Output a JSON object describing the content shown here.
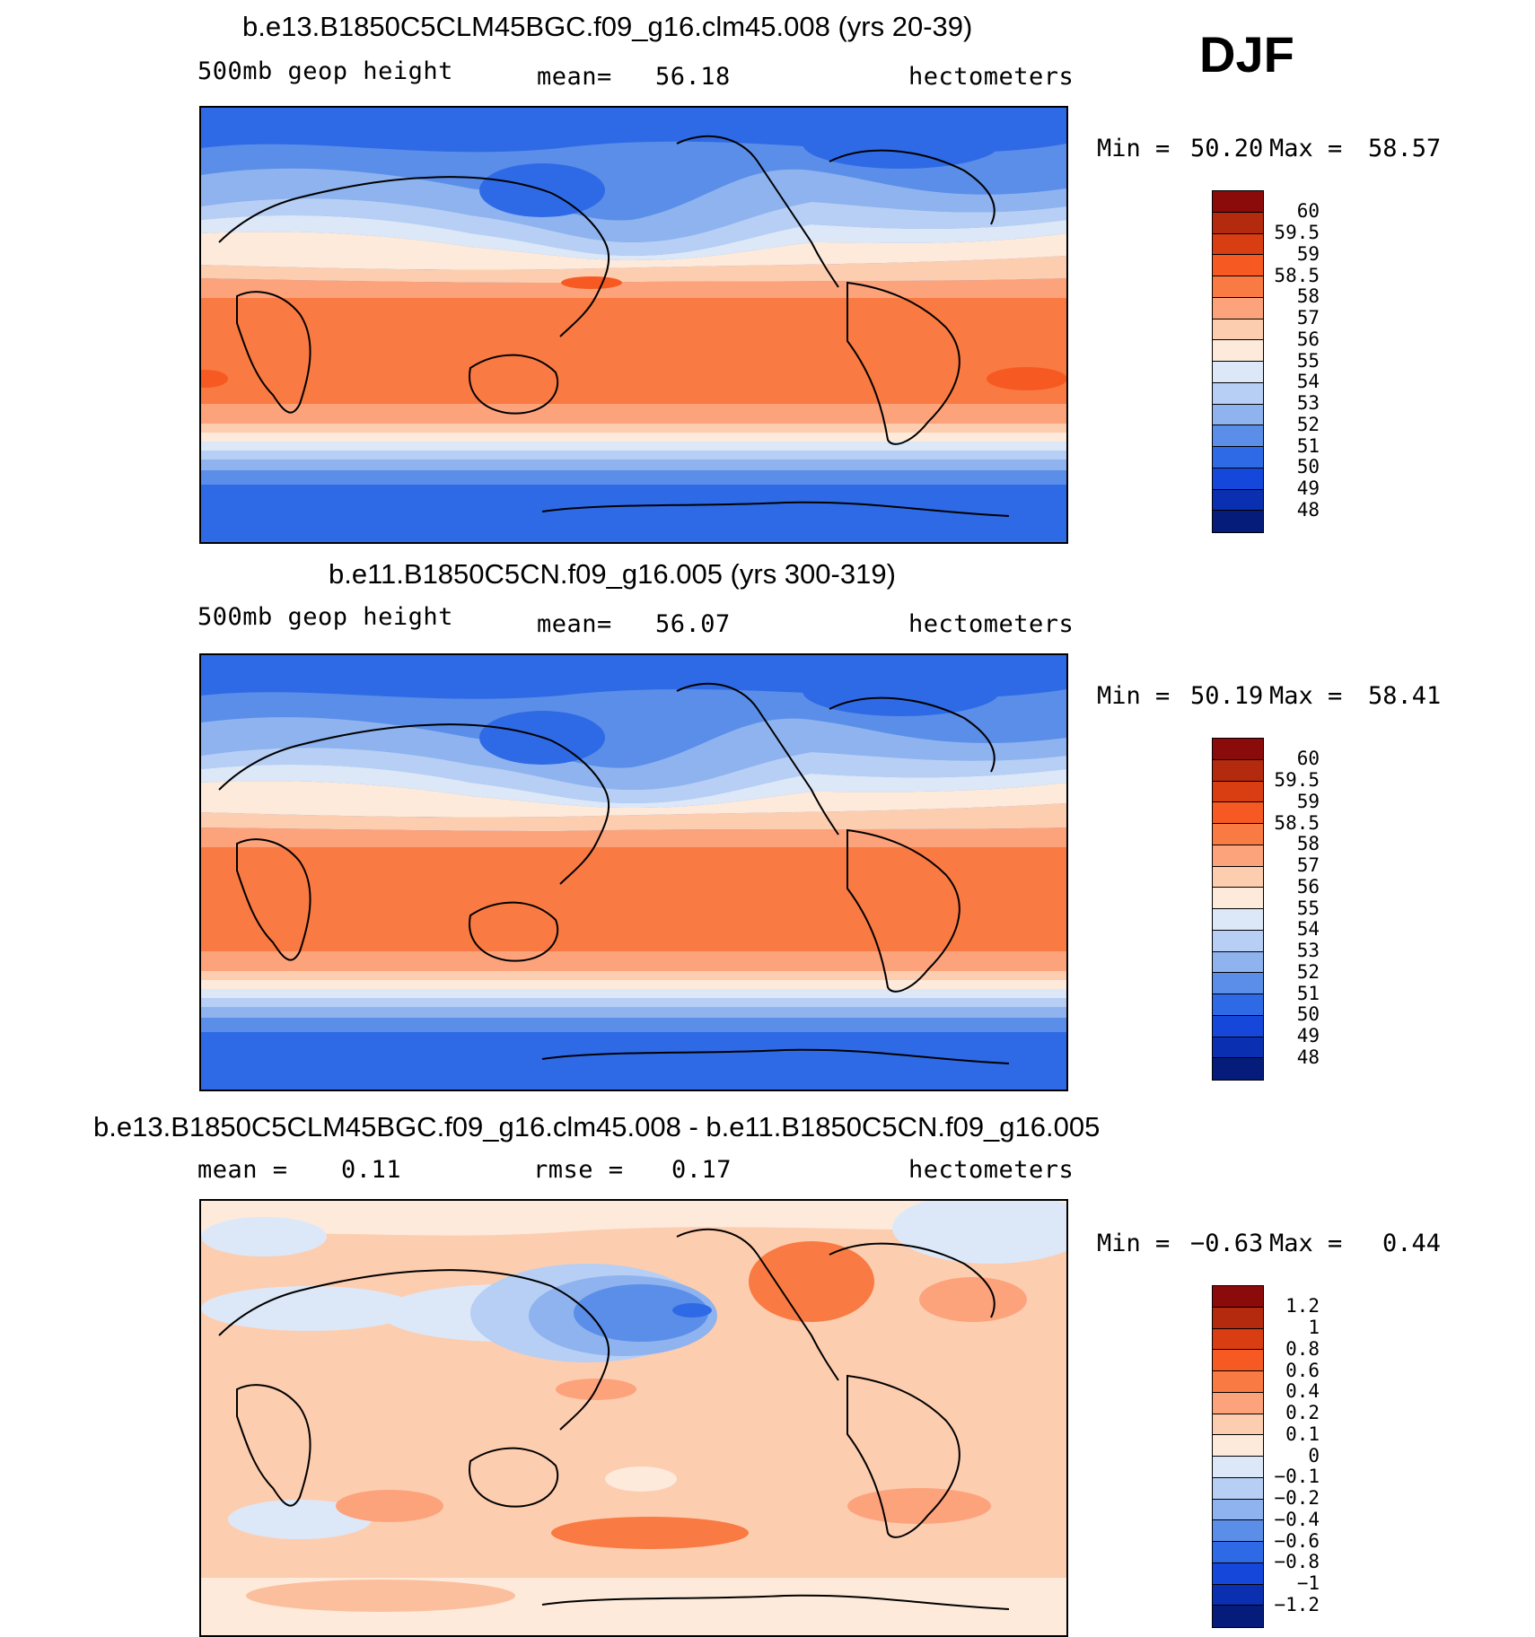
{
  "season": "DJF",
  "colors": {
    "bg": "#ffffff",
    "outline": "#000000"
  },
  "chart_data": [
    {
      "type": "heatmap",
      "title": "b.e13.B1850C5CLM45BGC.f09_g16.clm45.008 (yrs 20-39)",
      "variable": "500mb  geop  height",
      "stat1_label": "mean=",
      "stat1_value": "56.18",
      "units": "hectometers",
      "min_label": "Min =",
      "min_value": "50.20",
      "max_label": "Max =",
      "max_value": "58.57",
      "colorbar": {
        "labels": [
          "60",
          "59.5",
          "59",
          "58.5",
          "58",
          "57",
          "56",
          "55",
          "54",
          "53",
          "52",
          "51",
          "50",
          "49",
          "48"
        ],
        "colors": [
          "#8b0a0a",
          "#b42a0f",
          "#d93d12",
          "#f65a22",
          "#f97a42",
          "#fca37c",
          "#fdcdb0",
          "#fdeadb",
          "#dce8f8",
          "#b7cff4",
          "#8eb3ef",
          "#5a8ee8",
          "#2f6ae6",
          "#1547db",
          "#0a2fb0",
          "#061c7a"
        ]
      }
    },
    {
      "type": "heatmap",
      "title": "b.e11.B1850C5CN.f09_g16.005 (yrs 300-319)",
      "variable": "500mb  geop  height",
      "stat1_label": "mean=",
      "stat1_value": "56.07",
      "units": "hectometers",
      "min_label": "Min =",
      "min_value": "50.19",
      "max_label": "Max =",
      "max_value": "58.41",
      "colorbar": {
        "labels": [
          "60",
          "59.5",
          "59",
          "58.5",
          "58",
          "57",
          "56",
          "55",
          "54",
          "53",
          "52",
          "51",
          "50",
          "49",
          "48"
        ],
        "colors": [
          "#8b0a0a",
          "#b42a0f",
          "#d93d12",
          "#f65a22",
          "#f97a42",
          "#fca37c",
          "#fdcdb0",
          "#fdeadb",
          "#dce8f8",
          "#b7cff4",
          "#8eb3ef",
          "#5a8ee8",
          "#2f6ae6",
          "#1547db",
          "#0a2fb0",
          "#061c7a"
        ]
      }
    },
    {
      "type": "heatmap",
      "title": "b.e13.B1850C5CLM45BGC.f09_g16.clm45.008 - b.e11.B1850C5CN.f09_g16.005",
      "stat1_label": "mean =",
      "stat1_value": "0.11",
      "stat2_label": "rmse =",
      "stat2_value": "0.17",
      "units": "hectometers",
      "min_label": "Min =",
      "min_value": "−0.63",
      "max_label": "Max =",
      "max_value": "0.44",
      "colorbar": {
        "labels": [
          "1.2",
          "1",
          "0.8",
          "0.6",
          "0.4",
          "0.2",
          "0.1",
          "0",
          "−0.1",
          "−0.2",
          "−0.4",
          "−0.6",
          "−0.8",
          "−1",
          "−1.2"
        ],
        "colors": [
          "#8b0a0a",
          "#b42a0f",
          "#d93d12",
          "#f65a22",
          "#f97a42",
          "#fca37c",
          "#fdcdb0",
          "#fdeadb",
          "#dce8f8",
          "#b7cff4",
          "#8eb3ef",
          "#5a8ee8",
          "#2f6ae6",
          "#1547db",
          "#0a2fb0",
          "#061c7a"
        ]
      }
    }
  ]
}
